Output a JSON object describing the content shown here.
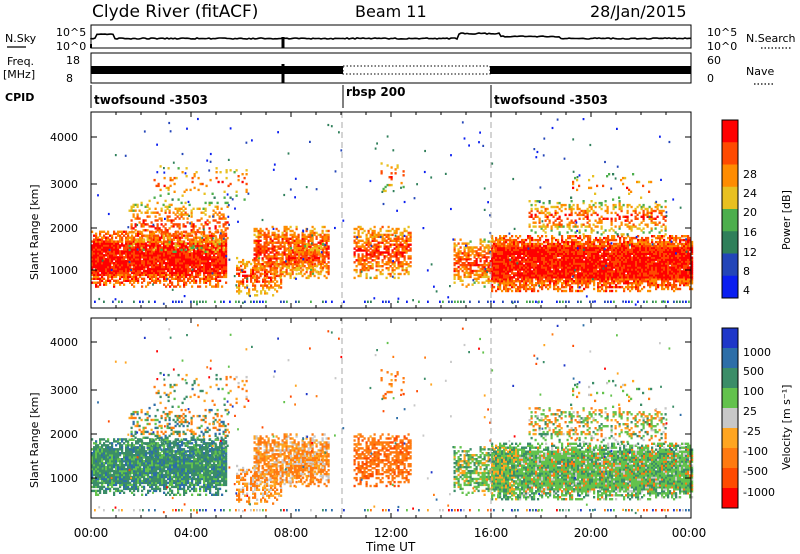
{
  "header": {
    "title": "Clyde River (fitACF)",
    "beam": "Beam 11",
    "date": "28/Jan/2015"
  },
  "noise_panel": {
    "left_label": "N.Sky",
    "right_label": "N.Search",
    "left_ticks": [
      "10^5",
      "10^0"
    ],
    "right_ticks": [
      "10^5",
      "10^0"
    ]
  },
  "freq_panel": {
    "left_label_top": "Freq.",
    "left_label_bottom": "[MHz]",
    "right_label": "Nave",
    "left_ticks": [
      "18",
      "8"
    ],
    "right_ticks": [
      "60",
      "0"
    ]
  },
  "cpid_panel": {
    "label": "CPID",
    "segments": [
      {
        "name": "twofsound -3503",
        "start_hour": 0,
        "end_hour": 10
      },
      {
        "name": "rbsp 200",
        "start_hour": 10,
        "end_hour": 16
      },
      {
        "name": "twofsound -3503",
        "start_hour": 16,
        "end_hour": 24
      }
    ]
  },
  "power_colorbar": {
    "label": "Power [dB]",
    "ticks": [
      "28",
      "24",
      "20",
      "16",
      "12",
      "8",
      "4"
    ],
    "colors": [
      "#ff0000",
      "#ff4a00",
      "#ff8c00",
      "#e8c020",
      "#4cae4c",
      "#2f7f5a",
      "#2345b8",
      "#0a1ef0"
    ]
  },
  "velocity_colorbar": {
    "label": "Velocity [m s⁻¹]",
    "ticks": [
      "1000",
      "500",
      "100",
      "25",
      "-25",
      "-100",
      "-500",
      "-1000"
    ],
    "colors": [
      "#1f37c9",
      "#2d6ea8",
      "#3b8d68",
      "#63c24c",
      "#c8c8c8",
      "#ffa520",
      "#ff7a10",
      "#ff4a00",
      "#ff0000"
    ]
  },
  "chart_data": [
    {
      "type": "heatmap",
      "title": "Power",
      "xlabel": "",
      "ylabel": "Slant Range [km]",
      "yticks": [
        "1000",
        "2000",
        "3000",
        "4000"
      ],
      "ylim": [
        200,
        4500
      ],
      "xlim": [
        0,
        24
      ],
      "scale_label": "Power [dB]",
      "vlines_hours": [
        10,
        16
      ]
    },
    {
      "type": "heatmap",
      "title": "Velocity",
      "xlabel": "Time UT",
      "ylabel": "Slant Range [km]",
      "yticks": [
        "1000",
        "2000",
        "3000",
        "4000"
      ],
      "ylim": [
        200,
        4500
      ],
      "xlim": [
        0,
        24
      ],
      "xticks": [
        "00:00",
        "04:00",
        "08:00",
        "12:00",
        "16:00",
        "20:00",
        "00:00"
      ],
      "scale_label": "Velocity [m s⁻¹]",
      "vlines_hours": [
        10,
        16
      ]
    }
  ]
}
